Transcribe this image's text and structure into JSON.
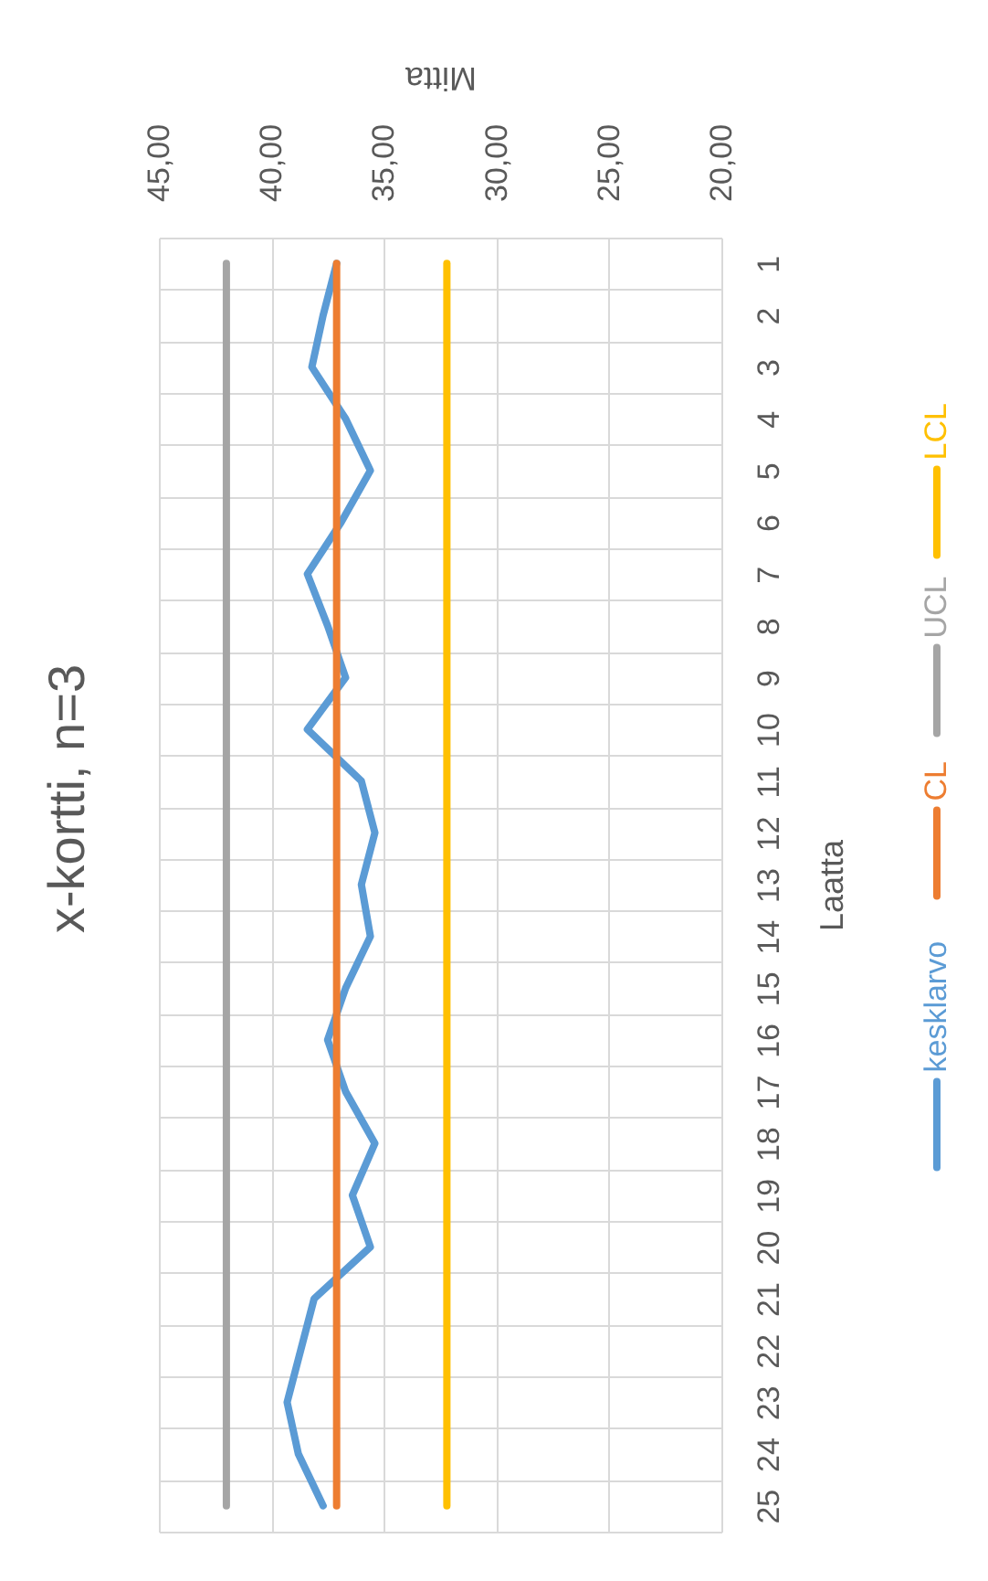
{
  "chart_data": {
    "type": "line",
    "title": "x-kortti, n=3",
    "xlabel": "Mitta",
    "ylabel": "Laatta",
    "orientation": "horizontal",
    "categories": [
      "1",
      "2",
      "3",
      "4",
      "5",
      "6",
      "7",
      "8",
      "9",
      "10",
      "11",
      "12",
      "13",
      "14",
      "15",
      "16",
      "17",
      "18",
      "19",
      "20",
      "21",
      "22",
      "23",
      "24",
      "25"
    ],
    "series": [
      {
        "name": "kesklarvo",
        "color": "#5b9bd5",
        "values": [
          37.1,
          37.7,
          38.2,
          36.7,
          35.6,
          36.9,
          38.4,
          37.5,
          36.7,
          38.4,
          36.0,
          35.4,
          36.0,
          35.6,
          36.7,
          37.5,
          36.7,
          35.4,
          36.4,
          35.6,
          38.1,
          38.7,
          39.3,
          38.8,
          37.7
        ]
      },
      {
        "name": "CL",
        "color": "#ed7d31",
        "values": [
          37.1,
          37.1,
          37.1,
          37.1,
          37.1,
          37.1,
          37.1,
          37.1,
          37.1,
          37.1,
          37.1,
          37.1,
          37.1,
          37.1,
          37.1,
          37.1,
          37.1,
          37.1,
          37.1,
          37.1,
          37.1,
          37.1,
          37.1,
          37.1,
          37.1
        ]
      },
      {
        "name": "UCL",
        "color": "#a5a5a5",
        "values": [
          42.0,
          42.0,
          42.0,
          42.0,
          42.0,
          42.0,
          42.0,
          42.0,
          42.0,
          42.0,
          42.0,
          42.0,
          42.0,
          42.0,
          42.0,
          42.0,
          42.0,
          42.0,
          42.0,
          42.0,
          42.0,
          42.0,
          42.0,
          42.0,
          42.0
        ]
      },
      {
        "name": "LCL",
        "color": "#ffc000",
        "values": [
          32.2,
          32.2,
          32.2,
          32.2,
          32.2,
          32.2,
          32.2,
          32.2,
          32.2,
          32.2,
          32.2,
          32.2,
          32.2,
          32.2,
          32.2,
          32.2,
          32.2,
          32.2,
          32.2,
          32.2,
          32.2,
          32.2,
          32.2,
          32.2,
          32.2
        ]
      }
    ],
    "xlim": [
      45,
      20
    ],
    "xticks": [
      {
        "value": 45,
        "label": "45,00"
      },
      {
        "value": 40,
        "label": "40,00"
      },
      {
        "value": 35,
        "label": "35,00"
      },
      {
        "value": 30,
        "label": "30,00"
      },
      {
        "value": 25,
        "label": "25,00"
      },
      {
        "value": 20,
        "label": "20,00"
      }
    ],
    "grid": true,
    "legend": "right"
  }
}
